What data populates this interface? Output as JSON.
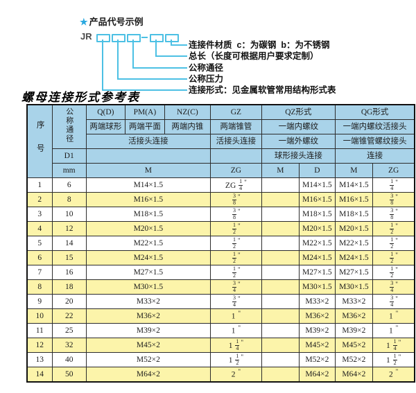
{
  "colors": {
    "header_bg": "#a9d3e9",
    "stripe_bg": "#fcf4aa",
    "diagram_line": "#4cc0e4",
    "star": "#2aa9e0",
    "border": "#2b2b2b"
  },
  "diagram": {
    "star": "★",
    "heading": "产品代号示例",
    "prefix": "JR",
    "labels": [
      "连接件材质  c：为碳钢  b：为不锈钢",
      "总长（长度可根据用户要求定制）",
      "公称通径",
      "公称压力",
      "连接形式：见金属软管常用结构形式表"
    ]
  },
  "table_title": "螺母连接形式参考表",
  "table": {
    "inch_mark": "\"",
    "header": {
      "seq": "序号",
      "dn": "公称通径",
      "d1": "D1",
      "mm": "mm",
      "forms": [
        "Q(D)",
        "PM(A)",
        "NZ(C)",
        "GZ",
        "QZ形式",
        "QG形式"
      ],
      "descs": [
        "两端球形",
        "两端平面",
        "两端内锥",
        "两端锥管",
        "一端内螺纹",
        "一端内螺纹活接头"
      ],
      "conn": [
        "活接头连接",
        "活接头连接",
        "一端外螺纹",
        "一端锥管螺纹接头"
      ],
      "conn2": [
        "球形接头连接",
        "连接"
      ],
      "units": {
        "m": "M",
        "zg": "ZG",
        "d": "D"
      }
    },
    "rows": [
      {
        "seq": "1",
        "dn": "6",
        "m": "M14×1.5",
        "gz": {
          "pre": "ZG",
          "num": "1",
          "den": "4"
        },
        "qz_m": "",
        "qz_d": "M14×1.5",
        "qg_m": "M14×1.5",
        "qg_zg": {
          "num": "1",
          "den": "4"
        }
      },
      {
        "seq": "2",
        "dn": "8",
        "m": "M16×1.5",
        "gz": {
          "num": "3",
          "den": "8"
        },
        "qz_m": "",
        "qz_d": "M16×1.5",
        "qg_m": "M16×1.5",
        "qg_zg": {
          "num": "3",
          "den": "8"
        }
      },
      {
        "seq": "3",
        "dn": "10",
        "m": "M18×1.5",
        "gz": {
          "num": "3",
          "den": "8"
        },
        "qz_m": "",
        "qz_d": "M18×1.5",
        "qg_m": "M18×1.5",
        "qg_zg": {
          "num": "3",
          "den": "8"
        }
      },
      {
        "seq": "4",
        "dn": "12",
        "m": "M20×1.5",
        "gz": {
          "num": "1",
          "den": "2"
        },
        "qz_m": "",
        "qz_d": "M20×1.5",
        "qg_m": "M20×1.5",
        "qg_zg": {
          "num": "1",
          "den": "2"
        }
      },
      {
        "seq": "5",
        "dn": "14",
        "m": "M22×1.5",
        "gz": {
          "num": "1",
          "den": "2"
        },
        "qz_m": "",
        "qz_d": "M22×1.5",
        "qg_m": "M22×1.5",
        "qg_zg": {
          "num": "1",
          "den": "2"
        }
      },
      {
        "seq": "6",
        "dn": "15",
        "m": "M24×1.5",
        "gz": {
          "num": "1",
          "den": "2"
        },
        "qz_m": "",
        "qz_d": "M24×1.5",
        "qg_m": "M24×1.5",
        "qg_zg": {
          "num": "1",
          "den": "2"
        }
      },
      {
        "seq": "7",
        "dn": "16",
        "m": "M27×1.5",
        "gz": {
          "num": "1",
          "den": "2"
        },
        "qz_m": "",
        "qz_d": "M27×1.5",
        "qg_m": "M27×1.5",
        "qg_zg": {
          "num": "1",
          "den": "2"
        }
      },
      {
        "seq": "8",
        "dn": "18",
        "m": "M30×1.5",
        "gz": {
          "num": "3",
          "den": "4"
        },
        "qz_m": "",
        "qz_d": "M30×1.5",
        "qg_m": "M30×1.5",
        "qg_zg": {
          "num": "3",
          "den": "4"
        }
      },
      {
        "seq": "9",
        "dn": "20",
        "m": "M33×2",
        "gz": {
          "num": "3",
          "den": "4"
        },
        "qz_m": "",
        "qz_d": "M33×2",
        "qg_m": "M33×2",
        "qg_zg": {
          "num": "3",
          "den": "4"
        }
      },
      {
        "seq": "10",
        "dn": "22",
        "m": "M36×2",
        "gz": {
          "whole": "1"
        },
        "qz_m": "",
        "qz_d": "M36×2",
        "qg_m": "M36×2",
        "qg_zg": {
          "whole": "1"
        }
      },
      {
        "seq": "11",
        "dn": "25",
        "m": "M39×2",
        "gz": {
          "whole": "1"
        },
        "qz_m": "",
        "qz_d": "M39×2",
        "qg_m": "M39×2",
        "qg_zg": {
          "whole": "1"
        }
      },
      {
        "seq": "12",
        "dn": "32",
        "m": "M45×2",
        "gz": {
          "whole": "1",
          "num": "1",
          "den": "4"
        },
        "qz_m": "",
        "qz_d": "M45×2",
        "qg_m": "M45×2",
        "qg_zg": {
          "whole": "1",
          "num": "1",
          "den": "4"
        }
      },
      {
        "seq": "13",
        "dn": "40",
        "m": "M52×2",
        "gz": {
          "whole": "1",
          "num": "1",
          "den": "2"
        },
        "qz_m": "",
        "qz_d": "M52×2",
        "qg_m": "M52×2",
        "qg_zg": {
          "whole": "1",
          "num": "1",
          "den": "2"
        }
      },
      {
        "seq": "14",
        "dn": "50",
        "m": "M64×2",
        "gz": {
          "whole": "2"
        },
        "qz_m": "",
        "qz_d": "M64×2",
        "qg_m": "M64×2",
        "qg_zg": {
          "whole": "2"
        }
      }
    ]
  }
}
